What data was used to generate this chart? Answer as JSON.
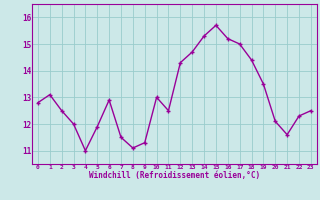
{
  "x": [
    0,
    1,
    2,
    3,
    4,
    5,
    6,
    7,
    8,
    9,
    10,
    11,
    12,
    13,
    14,
    15,
    16,
    17,
    18,
    19,
    20,
    21,
    22,
    23
  ],
  "y": [
    12.8,
    13.1,
    12.5,
    12.0,
    11.0,
    11.9,
    12.9,
    11.5,
    11.1,
    11.3,
    13.0,
    12.5,
    14.3,
    14.7,
    15.3,
    15.7,
    15.2,
    15.0,
    14.4,
    13.5,
    12.1,
    11.6,
    12.3,
    12.5
  ],
  "line_color": "#990099",
  "marker": "+",
  "marker_color": "#990099",
  "bg_color": "#cce8e8",
  "grid_color": "#99cccc",
  "xlabel": "Windchill (Refroidissement éolien,°C)",
  "xlabel_color": "#990099",
  "tick_color": "#990099",
  "ylim": [
    10.5,
    16.5
  ],
  "xlim": [
    -0.5,
    23.5
  ],
  "yticks": [
    11,
    12,
    13,
    14,
    15,
    16
  ],
  "xticks": [
    0,
    1,
    2,
    3,
    4,
    5,
    6,
    7,
    8,
    9,
    10,
    11,
    12,
    13,
    14,
    15,
    16,
    17,
    18,
    19,
    20,
    21,
    22,
    23
  ],
  "spine_color": "#990099",
  "linewidth": 1.0,
  "markersize": 3.5
}
